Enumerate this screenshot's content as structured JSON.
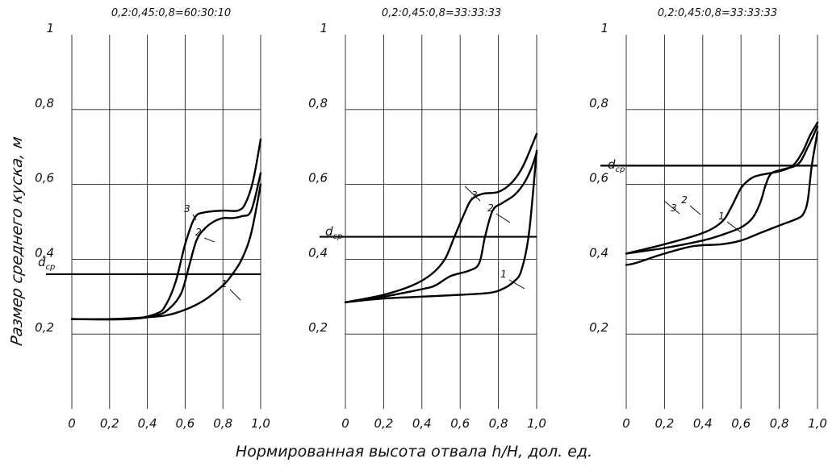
{
  "y_axis_label": "Размер среднего куска, м",
  "x_axis_label": "Нормированная высота отвала h/H, дол. ед.",
  "chart_data": [
    {
      "type": "line",
      "title": "0,2:0,45:0,8=60:30:10",
      "xlim": [
        0,
        1.0
      ],
      "ylim": [
        0,
        1.0
      ],
      "x_ticks": [
        "0",
        "0,2",
        "0,4",
        "0,6",
        "0,8",
        "1,0"
      ],
      "y_ticks": [
        "0,2",
        "0,4",
        "0,6",
        "0,8",
        "1"
      ],
      "grid": true,
      "reference_line": {
        "label": "d",
        "label_sub": "ср",
        "y": 0.36
      },
      "series": [
        {
          "name": "1",
          "x": [
            0,
            0.2,
            0.4,
            0.5,
            0.6,
            0.7,
            0.8,
            0.85,
            0.9,
            0.95,
            1.0
          ],
          "y": [
            0.24,
            0.24,
            0.245,
            0.25,
            0.265,
            0.29,
            0.33,
            0.36,
            0.4,
            0.47,
            0.6
          ]
        },
        {
          "name": "2",
          "x": [
            0,
            0.3,
            0.45,
            0.52,
            0.58,
            0.62,
            0.66,
            0.7,
            0.75,
            0.8,
            0.85,
            0.9,
            0.95,
            1.0
          ],
          "y": [
            0.24,
            0.24,
            0.25,
            0.27,
            0.31,
            0.38,
            0.45,
            0.48,
            0.5,
            0.51,
            0.51,
            0.515,
            0.53,
            0.63
          ]
        },
        {
          "name": "3",
          "x": [
            0,
            0.3,
            0.45,
            0.5,
            0.55,
            0.6,
            0.65,
            0.7,
            0.8,
            0.88,
            0.92,
            0.96,
            1.0
          ],
          "y": [
            0.24,
            0.24,
            0.255,
            0.28,
            0.34,
            0.44,
            0.51,
            0.525,
            0.53,
            0.53,
            0.55,
            0.61,
            0.72
          ]
        }
      ],
      "curve_labels": [
        "1",
        "2",
        "3"
      ]
    },
    {
      "type": "line",
      "title": "0,2:0,45:0,8=33:33:33",
      "xlim": [
        0,
        1.0
      ],
      "ylim": [
        0,
        1.0
      ],
      "x_ticks": [
        "0",
        "0,2",
        "0,4",
        "0,6",
        "0,8",
        "1,0"
      ],
      "y_ticks": [
        "0,2",
        "0,4",
        "0,6",
        "0,8",
        "1"
      ],
      "grid": true,
      "reference_line": {
        "label": "d",
        "label_sub": "ср",
        "y": 0.46
      },
      "series": [
        {
          "name": "1",
          "x": [
            0,
            0.2,
            0.4,
            0.6,
            0.75,
            0.82,
            0.88,
            0.92,
            0.96,
            1.0
          ],
          "y": [
            0.285,
            0.295,
            0.3,
            0.305,
            0.31,
            0.32,
            0.34,
            0.37,
            0.47,
            0.69
          ]
        },
        {
          "name": "2",
          "x": [
            0,
            0.2,
            0.4,
            0.47,
            0.55,
            0.65,
            0.7,
            0.73,
            0.77,
            0.82,
            0.88,
            0.93,
            0.97,
            1.0
          ],
          "y": [
            0.285,
            0.3,
            0.32,
            0.33,
            0.355,
            0.37,
            0.39,
            0.46,
            0.53,
            0.55,
            0.57,
            0.6,
            0.64,
            0.685
          ]
        },
        {
          "name": "3",
          "x": [
            0,
            0.2,
            0.35,
            0.45,
            0.52,
            0.57,
            0.62,
            0.66,
            0.72,
            0.8,
            0.87,
            0.93,
            1.0
          ],
          "y": [
            0.285,
            0.305,
            0.33,
            0.36,
            0.4,
            0.46,
            0.52,
            0.56,
            0.575,
            0.58,
            0.605,
            0.65,
            0.735
          ]
        }
      ],
      "curve_labels": [
        "1",
        "2",
        "3"
      ]
    },
    {
      "type": "line",
      "title": "0,2:0,45:0,8=33:33:33",
      "xlim": [
        0,
        1.0
      ],
      "ylim": [
        0,
        1.0
      ],
      "x_ticks": [
        "0",
        "0,2",
        "0,4",
        "0,6",
        "0,8",
        "1,0"
      ],
      "y_ticks": [
        "0,2",
        "0,4",
        "0,6",
        "0,8",
        "1"
      ],
      "grid": true,
      "reference_line": {
        "label": "d",
        "label_sub": "ср",
        "y": 0.65
      },
      "series": [
        {
          "name": "1",
          "x": [
            0,
            0.05,
            0.2,
            0.35,
            0.5,
            0.6,
            0.7,
            0.8,
            0.9,
            0.93,
            0.95,
            0.97,
            1.0
          ],
          "y": [
            0.385,
            0.39,
            0.415,
            0.435,
            0.44,
            0.45,
            0.47,
            0.49,
            0.51,
            0.525,
            0.56,
            0.65,
            0.74
          ]
        },
        {
          "name": "2",
          "x": [
            0,
            0.2,
            0.4,
            0.5,
            0.6,
            0.66,
            0.7,
            0.73,
            0.76,
            0.82,
            0.9,
            0.95,
            1.0
          ],
          "y": [
            0.415,
            0.43,
            0.45,
            0.465,
            0.485,
            0.51,
            0.55,
            0.6,
            0.63,
            0.64,
            0.655,
            0.7,
            0.755
          ]
        },
        {
          "name": "3",
          "x": [
            0,
            0.2,
            0.4,
            0.5,
            0.55,
            0.6,
            0.65,
            0.7,
            0.8,
            0.87,
            0.92,
            0.96,
            1.0
          ],
          "y": [
            0.415,
            0.44,
            0.47,
            0.5,
            0.54,
            0.59,
            0.615,
            0.625,
            0.635,
            0.65,
            0.685,
            0.73,
            0.765
          ]
        }
      ],
      "curve_labels": [
        "1",
        "2",
        "3"
      ]
    }
  ]
}
